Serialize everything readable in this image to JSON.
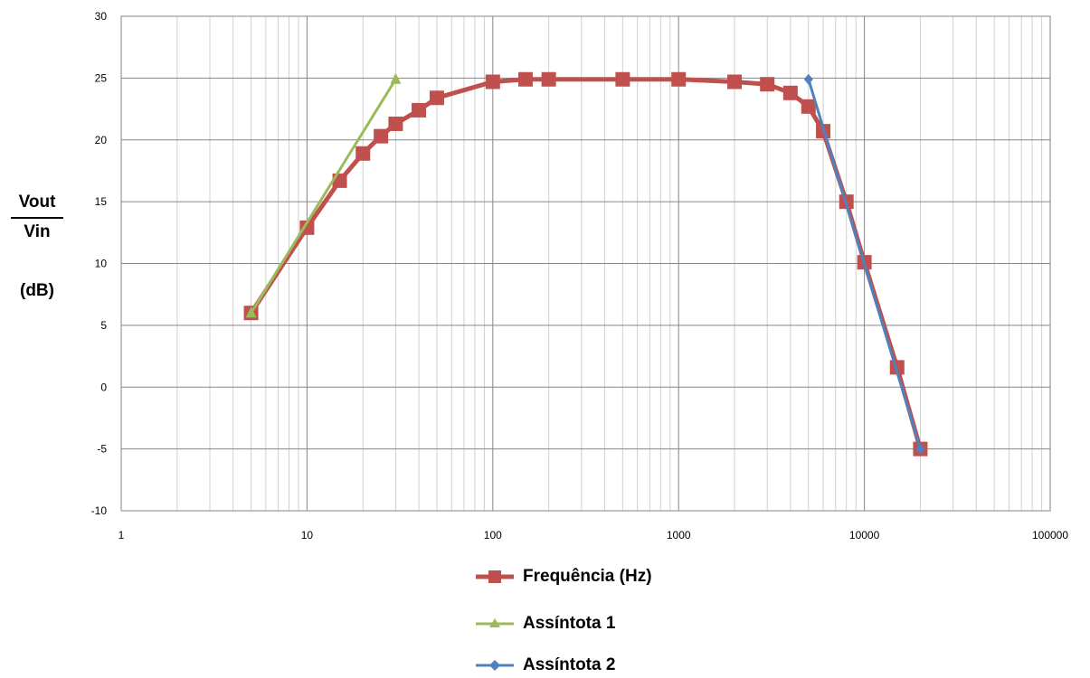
{
  "chart_data": {
    "type": "line",
    "x_scale": "log",
    "xlim": [
      1,
      100000
    ],
    "ylim": [
      -10,
      30
    ],
    "grid": true,
    "legend_position": "bottom",
    "ylabel": {
      "numerator": "Vout",
      "denominator": "Vin",
      "unit": "(dB)"
    },
    "x_ticks": [
      "1",
      "10",
      "100",
      "1000",
      "10000",
      "100000"
    ],
    "y_ticks": [
      "-10",
      "-5",
      "0",
      "5",
      "10",
      "15",
      "20",
      "25",
      "30"
    ],
    "series": [
      {
        "name": "Frequência (Hz)",
        "color": "#C0504D",
        "marker": "square",
        "points": [
          {
            "x": 5,
            "y": 6.0
          },
          {
            "x": 10,
            "y": 12.9
          },
          {
            "x": 15,
            "y": 16.7
          },
          {
            "x": 20,
            "y": 18.9
          },
          {
            "x": 25,
            "y": 20.3
          },
          {
            "x": 30,
            "y": 21.3
          },
          {
            "x": 40,
            "y": 22.4
          },
          {
            "x": 50,
            "y": 23.4
          },
          {
            "x": 100,
            "y": 24.7
          },
          {
            "x": 150,
            "y": 24.9
          },
          {
            "x": 200,
            "y": 24.9
          },
          {
            "x": 500,
            "y": 24.9
          },
          {
            "x": 1000,
            "y": 24.9
          },
          {
            "x": 2000,
            "y": 24.7
          },
          {
            "x": 3000,
            "y": 24.5
          },
          {
            "x": 4000,
            "y": 23.8
          },
          {
            "x": 5000,
            "y": 22.7
          },
          {
            "x": 6000,
            "y": 20.7
          },
          {
            "x": 8000,
            "y": 15.0
          },
          {
            "x": 10000,
            "y": 10.1
          },
          {
            "x": 15000,
            "y": 1.6
          },
          {
            "x": 20000,
            "y": -5.0
          }
        ]
      },
      {
        "name": "Assíntota 1",
        "color": "#9BBB59",
        "marker": "triangle",
        "points": [
          {
            "x": 5,
            "y": 6.0
          },
          {
            "x": 30,
            "y": 24.9
          }
        ]
      },
      {
        "name": "Assíntota 2",
        "color": "#4F81BD",
        "marker": "diamond",
        "points": [
          {
            "x": 5000,
            "y": 24.9
          },
          {
            "x": 20000,
            "y": -5.0
          }
        ]
      }
    ]
  }
}
